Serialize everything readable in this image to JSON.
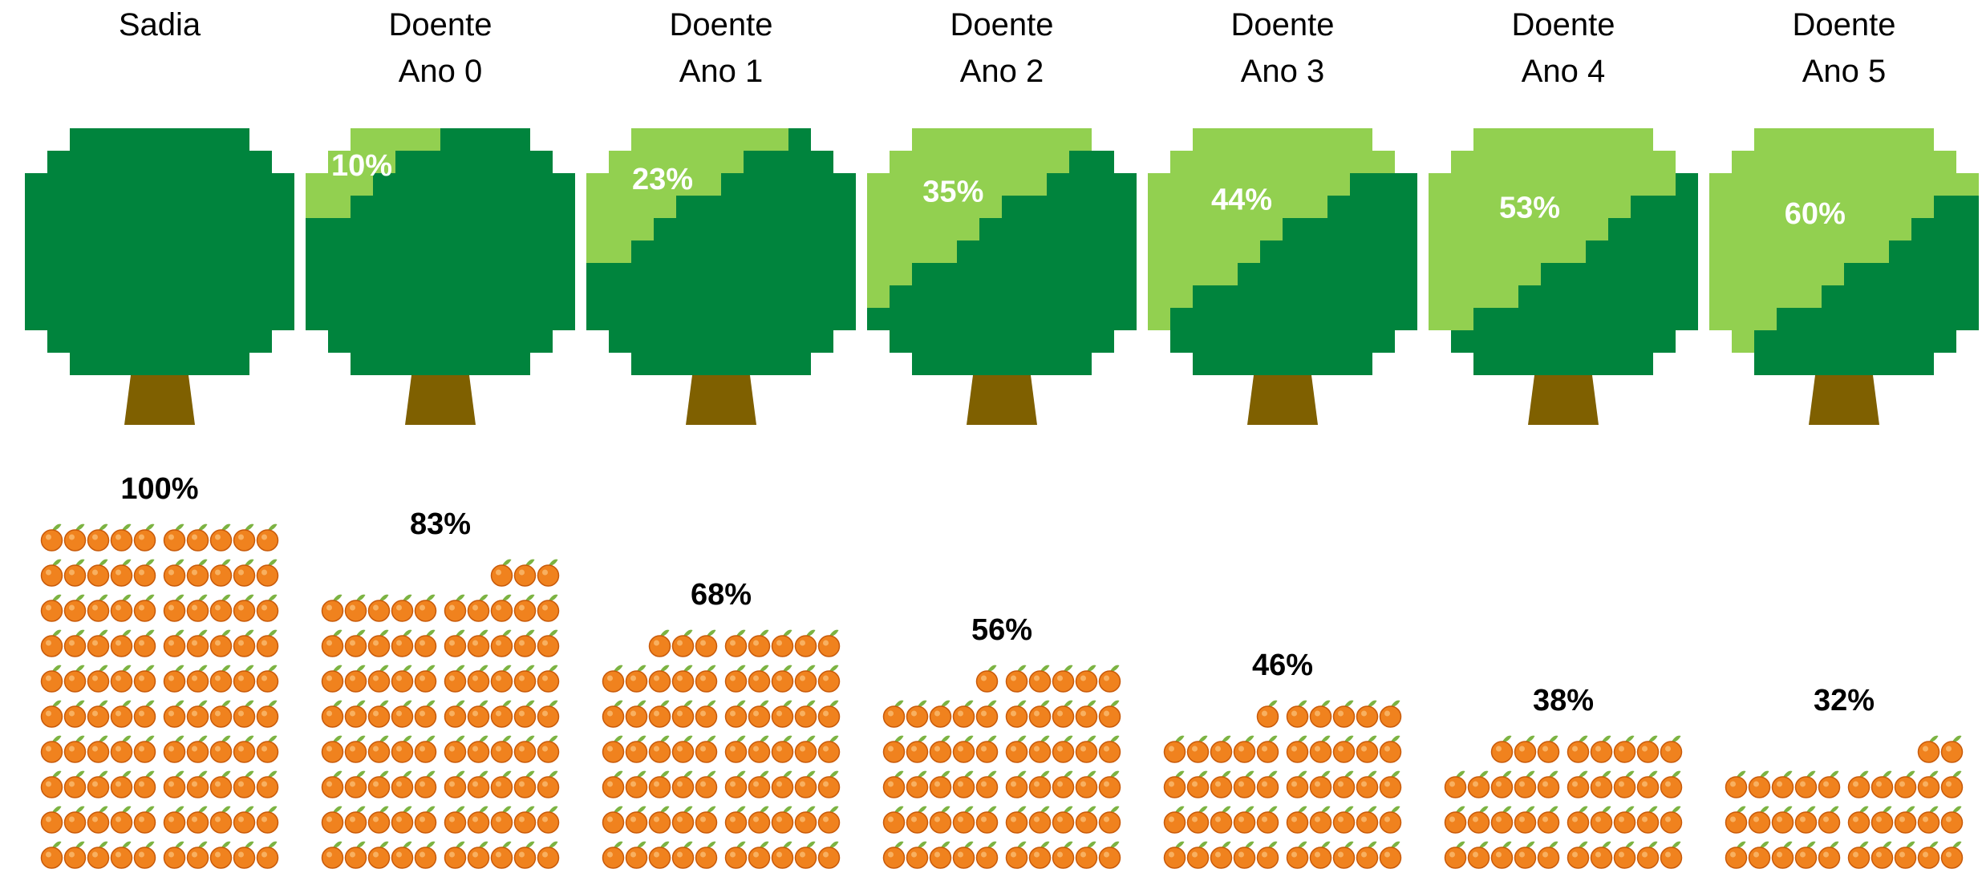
{
  "chart_data": {
    "type": "pictograph",
    "categories": [
      "Sadia",
      "Doente\nAno 0",
      "Doente\nAno 1",
      "Doente\nAno 2",
      "Doente\nAno 3",
      "Doente\nAno 4",
      "Doente\nAno 5"
    ],
    "tree_color": "#00843d",
    "trunk_color": "#7f6000",
    "series": [
      {
        "color": "#92d050",
        "values": [
          null,
          10,
          23,
          35,
          44,
          53,
          60
        ],
        "value_labels": [
          null,
          "10%",
          "23%",
          "35%",
          "44%",
          "53%",
          "60%"
        ]
      },
      {
        "color": "#f0821e",
        "values": [
          100,
          83,
          68,
          56,
          46,
          38,
          32
        ],
        "value_labels": [
          "100%",
          "83%",
          "68%",
          "56%",
          "46%",
          "38%",
          "32%"
        ]
      }
    ]
  }
}
